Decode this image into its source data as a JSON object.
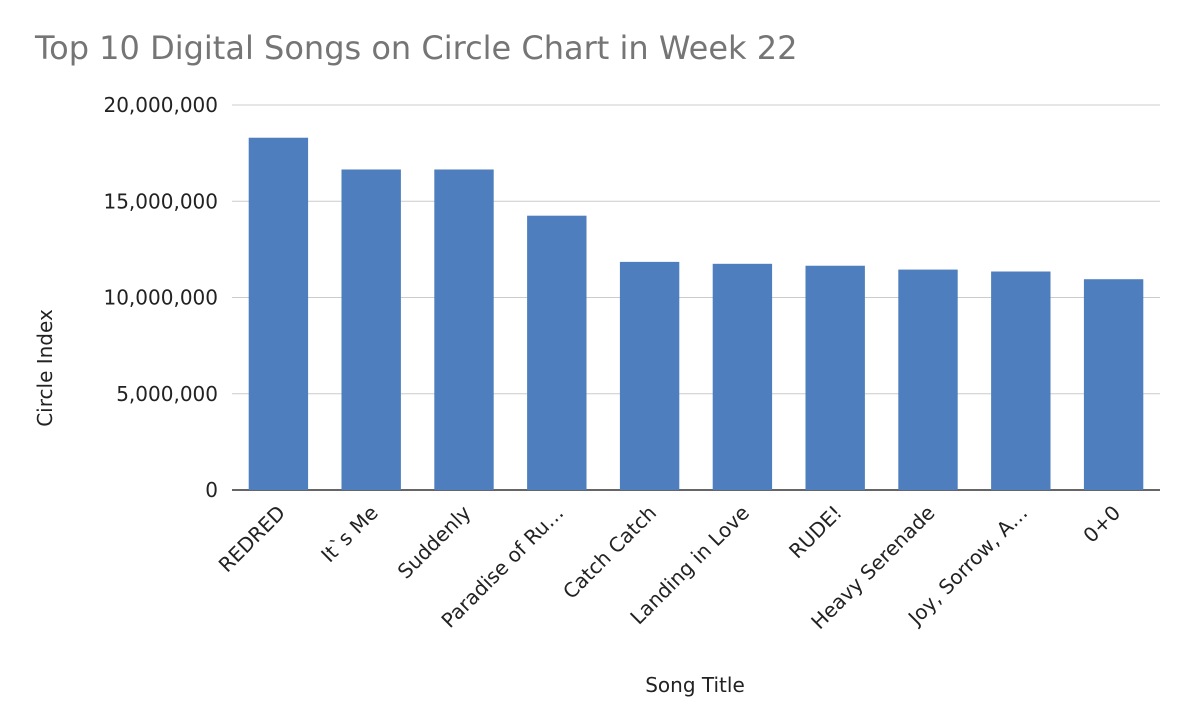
{
  "chart_data": {
    "type": "bar",
    "title": "Top 10 Digital Songs on Circle Chart in Week 22",
    "xlabel": "Song Title",
    "ylabel": "Circle Index",
    "categories": [
      "REDRED",
      "It`s Me",
      "Suddenly",
      "Paradise of Ru…",
      "Catch Catch",
      "Landing in Love",
      "RUDE!",
      "Heavy Serenade",
      "Joy, Sorrow, A…",
      "0+0"
    ],
    "values": [
      18300000,
      16650000,
      16650000,
      14250000,
      11850000,
      11750000,
      11650000,
      11450000,
      11350000,
      10950000
    ],
    "ylim": [
      0,
      20000000
    ],
    "yticks": [
      0,
      5000000,
      10000000,
      15000000,
      20000000
    ],
    "ytick_labels": [
      "0",
      "5,000,000",
      "10,000,000",
      "15,000,000",
      "20,000,000"
    ],
    "grid": true,
    "bar_color": "#4e7ebe"
  }
}
